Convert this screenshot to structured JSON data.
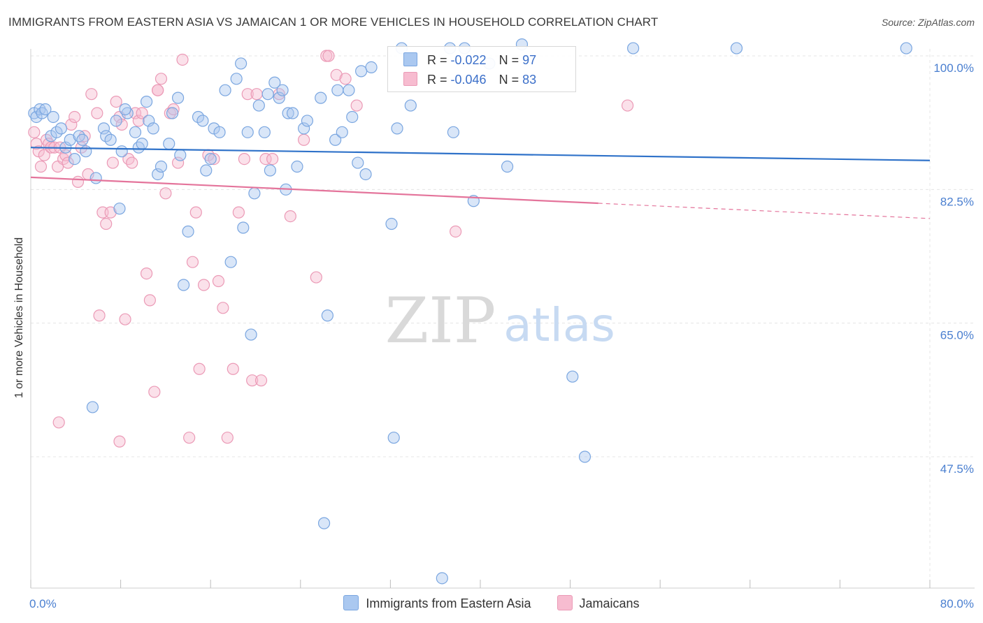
{
  "header": {
    "title": "IMMIGRANTS FROM EASTERN ASIA VS JAMAICAN 1 OR MORE VEHICLES IN HOUSEHOLD CORRELATION CHART",
    "source": "Source: ZipAtlas.com"
  },
  "watermark": {
    "zip": "ZIP",
    "atlas": "atlas"
  },
  "legend": {
    "rows": [
      {
        "r_label": "R = ",
        "r_value": "-0.022",
        "n_label": "N = ",
        "n_value": "97"
      },
      {
        "r_label": "R = ",
        "r_value": "-0.046",
        "n_label": "N = ",
        "n_value": "83"
      }
    ]
  },
  "colors": {
    "blue_fill": "#aac8f0",
    "blue_stroke": "#7aa6e0",
    "blue_line": "#2f72c9",
    "pink_fill": "#f7bcd0",
    "pink_stroke": "#eb9ab6",
    "pink_line": "#e4749b",
    "tick_text": "#4a7fd0"
  },
  "chart_data": {
    "type": "scatter",
    "title": "IMMIGRANTS FROM EASTERN ASIA VS JAMAICAN 1 OR MORE VEHICLES IN HOUSEHOLD CORRELATION CHART",
    "xlabel": "",
    "ylabel": "1 or more Vehicles in Household",
    "xlim": [
      0,
      80
    ],
    "ylim": [
      32,
      102
    ],
    "x_tick_labels": [
      "0.0%",
      "80.0%"
    ],
    "y_ticks": [
      100,
      82.5,
      65,
      47.5
    ],
    "y_tick_labels": [
      "100.0%",
      "82.5%",
      "65.0%",
      "47.5%"
    ],
    "grid": true,
    "legend_position": "top-center",
    "series": [
      {
        "name": "Immigrants from Eastern Asia",
        "color": "blue",
        "trend": {
          "x": [
            0,
            80
          ],
          "y": [
            88.0,
            86.3
          ]
        },
        "points": [
          [
            0.3,
            92.5
          ],
          [
            0.5,
            92
          ],
          [
            0.8,
            93
          ],
          [
            1,
            92.5
          ],
          [
            1.3,
            93
          ],
          [
            1.8,
            89.5
          ],
          [
            2,
            92
          ],
          [
            2.3,
            90
          ],
          [
            2.7,
            90.5
          ],
          [
            3.1,
            88
          ],
          [
            3.5,
            89
          ],
          [
            3.9,
            86.5
          ],
          [
            4.3,
            89.5
          ],
          [
            4.6,
            89
          ],
          [
            4.9,
            87.5
          ],
          [
            5.8,
            84
          ],
          [
            6.5,
            90.5
          ],
          [
            6.7,
            89.5
          ],
          [
            7.1,
            89
          ],
          [
            7.6,
            91.5
          ],
          [
            7.9,
            80
          ],
          [
            8.1,
            87.5
          ],
          [
            8.6,
            92.5
          ],
          [
            9.3,
            90
          ],
          [
            9.6,
            88
          ],
          [
            9.9,
            88.5
          ],
          [
            10.3,
            94
          ],
          [
            10.5,
            91.5
          ],
          [
            10.9,
            90.5
          ],
          [
            11.3,
            84.5
          ],
          [
            11.6,
            85.5
          ],
          [
            12.3,
            88.5
          ],
          [
            12.6,
            92.5
          ],
          [
            13.1,
            94.5
          ],
          [
            13.3,
            87
          ],
          [
            13.6,
            70
          ],
          [
            14,
            77
          ],
          [
            14.9,
            92
          ],
          [
            15.3,
            91.5
          ],
          [
            15.6,
            85
          ],
          [
            16,
            86.5
          ],
          [
            16.3,
            90.5
          ],
          [
            16.8,
            90
          ],
          [
            17.3,
            95.5
          ],
          [
            17.8,
            73
          ],
          [
            18.3,
            97
          ],
          [
            18.7,
            99
          ],
          [
            18.9,
            77.5
          ],
          [
            19.3,
            90
          ],
          [
            19.6,
            63.5
          ],
          [
            19.9,
            82
          ],
          [
            20.3,
            93.5
          ],
          [
            20.8,
            90
          ],
          [
            21.1,
            95
          ],
          [
            21.3,
            85
          ],
          [
            21.7,
            96.5
          ],
          [
            22.1,
            94.5
          ],
          [
            22.4,
            95.5
          ],
          [
            22.7,
            82.5
          ],
          [
            22.9,
            92.5
          ],
          [
            23.3,
            92.5
          ],
          [
            23.7,
            85.5
          ],
          [
            24.3,
            90.5
          ],
          [
            24.6,
            91.5
          ],
          [
            25.8,
            94.5
          ],
          [
            26.4,
            66
          ],
          [
            27.1,
            89
          ],
          [
            27.3,
            95.5
          ],
          [
            27.7,
            90
          ],
          [
            28.3,
            95.5
          ],
          [
            28.6,
            92
          ],
          [
            29.1,
            86
          ],
          [
            29.4,
            98
          ],
          [
            29.8,
            84.5
          ],
          [
            30.3,
            98.5
          ],
          [
            32.1,
            78
          ],
          [
            32.3,
            50
          ],
          [
            32.6,
            90.5
          ],
          [
            33,
            101
          ],
          [
            33.8,
            93.5
          ],
          [
            37.3,
            101
          ],
          [
            37.6,
            90
          ],
          [
            38.6,
            101
          ],
          [
            39.4,
            81
          ],
          [
            40.8,
            99
          ],
          [
            42.4,
            85.5
          ],
          [
            43.7,
            101.5
          ],
          [
            48.2,
            58
          ],
          [
            49.3,
            47.5
          ],
          [
            53.6,
            101
          ],
          [
            62.8,
            101
          ],
          [
            77.9,
            101
          ],
          [
            26.1,
            38.8
          ],
          [
            36.6,
            31.6
          ],
          [
            5.5,
            54
          ],
          [
            8.4,
            93
          ]
        ]
      },
      {
        "name": "Jamaicans",
        "color": "pink",
        "trend": {
          "x": [
            0,
            50.5
          ],
          "y": [
            84.1,
            80.7
          ]
        },
        "trend_dashed": {
          "x": [
            50.5,
            80
          ],
          "y": [
            80.7,
            78.7
          ]
        },
        "points": [
          [
            0.3,
            90
          ],
          [
            0.5,
            88.5
          ],
          [
            0.7,
            87.5
          ],
          [
            0.9,
            85.5
          ],
          [
            1.2,
            87
          ],
          [
            1.4,
            89
          ],
          [
            1.6,
            88.5
          ],
          [
            1.8,
            88
          ],
          [
            2.1,
            88
          ],
          [
            2.4,
            85.5
          ],
          [
            2.6,
            88
          ],
          [
            2.9,
            86.5
          ],
          [
            3.1,
            87
          ],
          [
            3.3,
            86
          ],
          [
            3.6,
            91
          ],
          [
            3.9,
            92
          ],
          [
            4.2,
            83.5
          ],
          [
            4.5,
            88
          ],
          [
            4.8,
            89.5
          ],
          [
            5.1,
            84.5
          ],
          [
            5.4,
            95
          ],
          [
            5.9,
            92.5
          ],
          [
            6.1,
            66
          ],
          [
            6.4,
            79.5
          ],
          [
            6.7,
            78
          ],
          [
            7.1,
            79.5
          ],
          [
            7.3,
            86
          ],
          [
            7.6,
            94
          ],
          [
            7.9,
            92
          ],
          [
            8.1,
            91
          ],
          [
            8.4,
            65.5
          ],
          [
            8.7,
            86.5
          ],
          [
            9,
            86
          ],
          [
            9.3,
            92.5
          ],
          [
            9.6,
            91.5
          ],
          [
            9.9,
            92.5
          ],
          [
            10.3,
            71.5
          ],
          [
            10.6,
            68
          ],
          [
            11,
            56
          ],
          [
            11.3,
            95.5
          ],
          [
            11.6,
            97
          ],
          [
            12,
            82
          ],
          [
            12.4,
            92.5
          ],
          [
            12.7,
            93
          ],
          [
            13.1,
            86
          ],
          [
            13.5,
            99.5
          ],
          [
            14.1,
            50
          ],
          [
            14.4,
            73
          ],
          [
            14.7,
            79.5
          ],
          [
            15,
            59
          ],
          [
            15.4,
            70
          ],
          [
            15.8,
            87
          ],
          [
            16.3,
            86.5
          ],
          [
            16.7,
            70.5
          ],
          [
            17.1,
            67
          ],
          [
            17.5,
            50
          ],
          [
            18,
            59
          ],
          [
            18.5,
            79.5
          ],
          [
            19,
            86.5
          ],
          [
            19.3,
            95
          ],
          [
            19.7,
            57.5
          ],
          [
            20.1,
            95
          ],
          [
            20.5,
            57.5
          ],
          [
            20.9,
            86.5
          ],
          [
            21.5,
            86.5
          ],
          [
            22.1,
            95
          ],
          [
            23.1,
            79
          ],
          [
            24.3,
            89
          ],
          [
            25.4,
            71
          ],
          [
            26.3,
            100
          ],
          [
            26.5,
            100
          ],
          [
            27.2,
            97.5
          ],
          [
            28,
            97
          ],
          [
            29,
            93.5
          ],
          [
            37.8,
            77
          ],
          [
            2.5,
            52
          ],
          [
            7.9,
            49.5
          ],
          [
            11.3,
            95.5
          ],
          [
            53.1,
            93.5
          ]
        ]
      }
    ]
  },
  "bottom_legend": {
    "items": [
      {
        "label": "Immigrants from Eastern Asia",
        "color": "blue"
      },
      {
        "label": "Jamaicans",
        "color": "pink"
      }
    ]
  }
}
